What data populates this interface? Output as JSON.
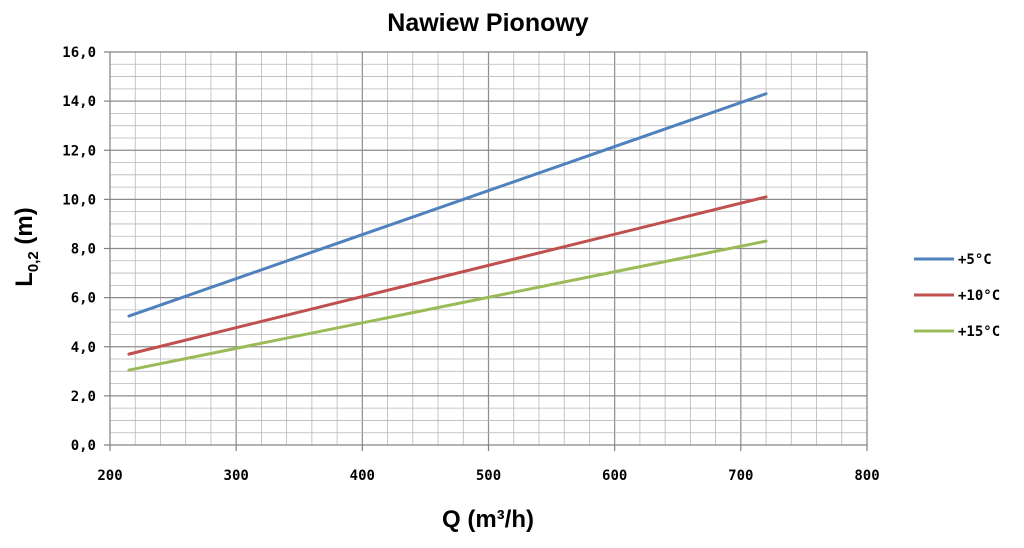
{
  "chart_data": {
    "type": "line",
    "title": "Nawiew Pionowy",
    "xlabel": "Q (m³/h)",
    "ylabel": {
      "main": "L",
      "sub": "0,2",
      "suffix": " (m)"
    },
    "xlim": [
      200,
      800
    ],
    "ylim": [
      0,
      16
    ],
    "x_ticks": [
      "200",
      "300",
      "400",
      "500",
      "600",
      "700",
      "800"
    ],
    "y_ticks": [
      "0,0",
      "2,0",
      "4,0",
      "6,0",
      "8,0",
      "10,0",
      "12,0",
      "14,0",
      "16,0"
    ],
    "grid": true,
    "legend_position": "right",
    "series": [
      {
        "name": "+5°C",
        "color": "#4f81bd",
        "x": [
          215,
          720
        ],
        "y": [
          5.25,
          14.3
        ]
      },
      {
        "name": "+10°C",
        "color": "#c0504d",
        "x": [
          215,
          720
        ],
        "y": [
          3.7,
          10.1
        ]
      },
      {
        "name": "+15°C",
        "color": "#9bbb59",
        "x": [
          215,
          720
        ],
        "y": [
          3.05,
          8.3
        ]
      }
    ]
  }
}
